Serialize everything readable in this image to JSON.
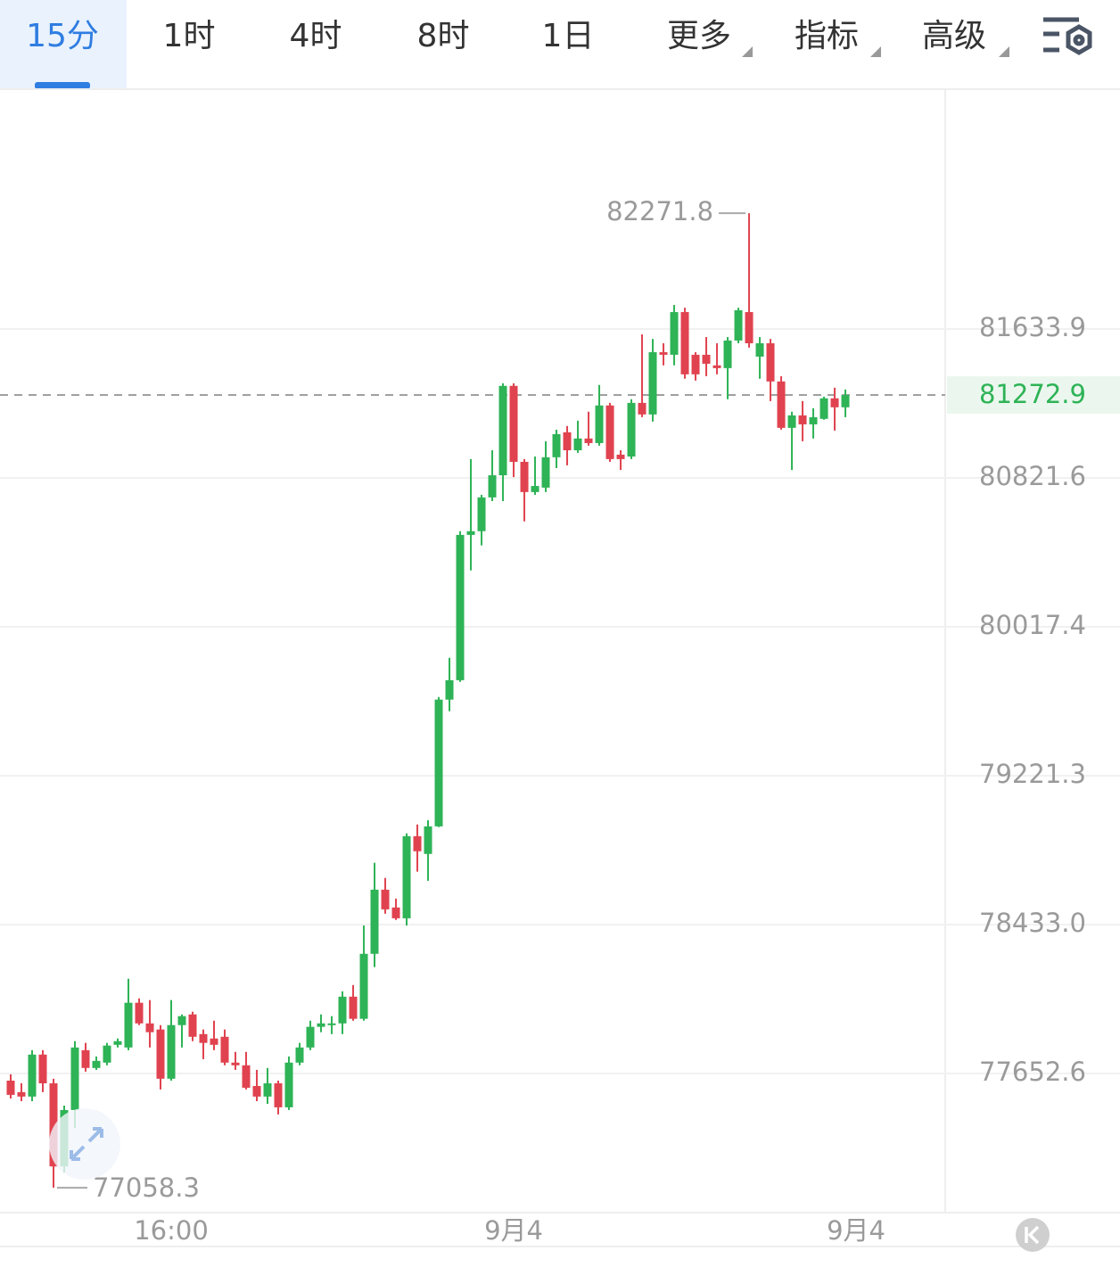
{
  "tabs": [
    "15分",
    "1时",
    "4时",
    "8时",
    "1日",
    "更多",
    "指标",
    "高级"
  ],
  "active_tab": 0,
  "chart_data": {
    "type": "candlestick",
    "log_scale": true,
    "grid": true,
    "up_color": "#2eb356",
    "down_color": "#e0434f",
    "ylim": [
      76930,
      82960
    ],
    "yticks": [
      {
        "value": 77652.6,
        "label": "77652.6"
      },
      {
        "value": 78433.0,
        "label": "78433.0"
      },
      {
        "value": 79221.3,
        "label": "79221.3"
      },
      {
        "value": 80017.4,
        "label": "80017.4"
      },
      {
        "value": 80821.6,
        "label": "80821.6"
      },
      {
        "value": 81633.9,
        "label": "81633.9"
      }
    ],
    "xlim": [
      -1,
      87.33
    ],
    "xticks": [
      {
        "value": 15,
        "label": "16:00"
      },
      {
        "value": 47,
        "label": "9月4"
      },
      {
        "value": 79,
        "label": "9月4"
      }
    ],
    "open": [
      77615,
      77555,
      77532,
      77751,
      77601,
      77169,
      77462,
      77774,
      77681,
      77709,
      77802,
      77788,
      78022,
      77914,
      77882,
      77625,
      77905,
      77961,
      77858,
      77835,
      77844,
      77709,
      77695,
      77587,
      77532,
      77601,
      77476,
      77709,
      77788,
      77896,
      77905,
      77914,
      78054,
      77938,
      78279,
      78617,
      78523,
      78466,
      78900,
      78806,
      78952,
      79627,
      79731,
      80513,
      80533,
      80716,
      80836,
      81323,
      80909,
      80745,
      80769,
      80934,
      81070,
      80972,
      81036,
      81011,
      81216,
      80948,
      80938,
      81230,
      81167,
      81507,
      81493,
      81727,
      81493,
      81493,
      81435,
      81420,
      81571,
      81727,
      81483,
      81556,
      81347,
      81094,
      81162,
      81113,
      81143,
      81255,
      81206
    ],
    "high": [
      77648,
      77601,
      77774,
      77774,
      77625,
      77485,
      77821,
      77812,
      77741,
      77812,
      77835,
      78148,
      78045,
      78036,
      77905,
      78036,
      77961,
      77975,
      77882,
      77928,
      77882,
      77765,
      77765,
      77671,
      77681,
      77615,
      77741,
      77812,
      77928,
      77961,
      77952,
      78082,
      78115,
      78428,
      78759,
      78679,
      78570,
      78915,
      78962,
      78985,
      79641,
      79851,
      80533,
      80924,
      80730,
      80972,
      81337,
      81337,
      80924,
      80938,
      81021,
      81084,
      81104,
      81133,
      81182,
      81328,
      81230,
      80972,
      81250,
      81605,
      81580,
      81556,
      81766,
      81751,
      81507,
      81590,
      81556,
      81590,
      81751,
      82271.8,
      81590,
      81580,
      81376,
      81182,
      81240,
      81201,
      81264,
      81313,
      81303
    ],
    "low": [
      77522,
      77508,
      77508,
      77555,
      77058.3,
      77137,
      77369,
      77662,
      77671,
      77695,
      77788,
      77774,
      77905,
      77788,
      77569,
      77615,
      77788,
      77821,
      77727,
      77774,
      77695,
      77671,
      77569,
      77508,
      77494,
      77439,
      77462,
      77695,
      77774,
      77868,
      77858,
      77858,
      77928,
      77928,
      78209,
      78490,
      78457,
      78428,
      78712,
      78664,
      78948,
      79565,
      79722,
      80321,
      80456,
      80696,
      80696,
      80826,
      80586,
      80730,
      80745,
      80875,
      80890,
      80958,
      80997,
      80997,
      80909,
      80865,
      80924,
      81152,
      81128,
      81435,
      81435,
      81362,
      81352,
      81376,
      81386,
      81250,
      81556,
      81532,
      81362,
      81240,
      81084,
      80865,
      81021,
      81036,
      81138,
      81079,
      81152
    ],
    "close": [
      77541,
      77532,
      77751,
      77601,
      77169,
      77462,
      77788,
      77681,
      77718,
      77798,
      77821,
      78022,
      77914,
      77868,
      77625,
      77905,
      77952,
      77844,
      77812,
      77802,
      77709,
      77695,
      77578,
      77532,
      77601,
      77476,
      77709,
      77788,
      77896,
      77914,
      77914,
      78054,
      77938,
      78279,
      78617,
      78513,
      78466,
      78900,
      78820,
      78952,
      79627,
      79731,
      80513,
      80533,
      80716,
      80836,
      81323,
      80909,
      80745,
      80778,
      80934,
      81060,
      80972,
      81036,
      81011,
      81216,
      80924,
      80924,
      81230,
      81167,
      81507,
      81493,
      81727,
      81386,
      81386,
      81444,
      81420,
      81571,
      81737,
      81556,
      81556,
      81347,
      81094,
      81162,
      81113,
      81152,
      81255,
      81206,
      81272.9
    ]
  }
}
